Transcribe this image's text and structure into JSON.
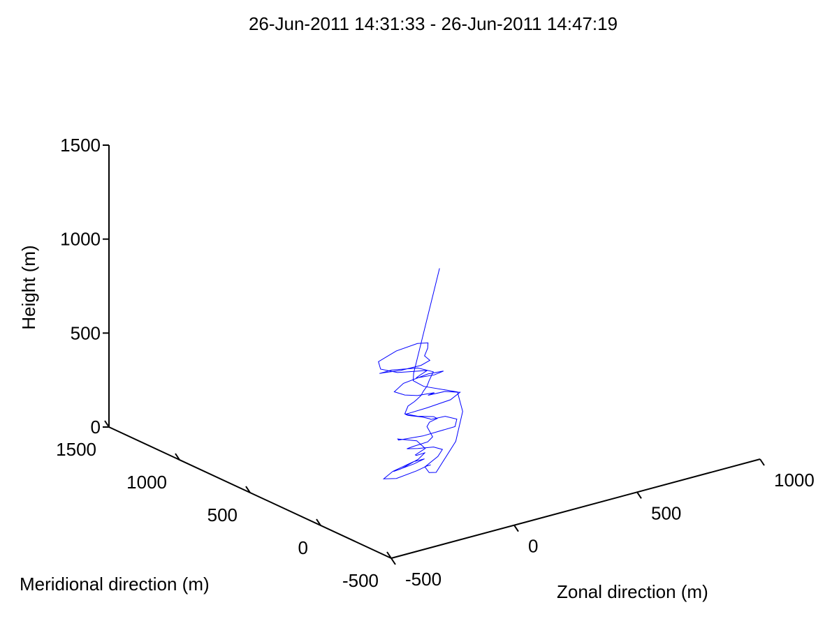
{
  "chart_data": {
    "type": "line3d",
    "title": "26-Jun-2011 14:31:33 - 26-Jun-2011 14:47:19",
    "xlabel": "Zonal direction (m)",
    "ylabel": "Meridional direction (m)",
    "zlabel": "Height (m)",
    "xlim": [
      -500,
      1000
    ],
    "ylim": [
      -500,
      1500
    ],
    "zlim": [
      0,
      1500
    ],
    "xticks": [
      -500,
      0,
      500,
      1000
    ],
    "yticks": [
      -500,
      0,
      500,
      1000,
      1500
    ],
    "zticks": [
      0,
      500,
      1000,
      1500
    ],
    "xtick_labels": [
      "-500",
      "0",
      "500",
      "1000"
    ],
    "ytick_labels": [
      "-500",
      "0",
      "500",
      "1000",
      "1500"
    ],
    "ztick_labels": [
      "0",
      "500",
      "1000",
      "1500"
    ],
    "grid": false,
    "line_color": "#0000ff",
    "series": [
      {
        "x": [
          120,
          100,
          40,
          -60,
          -100,
          -40,
          60,
          100,
          40,
          -60,
          -40,
          40,
          80,
          60,
          10,
          0,
          40,
          40,
          -20,
          -40,
          30,
          150,
          180,
          150,
          80,
          60,
          30,
          -20,
          -40,
          30,
          120,
          170,
          120,
          40,
          60,
          20,
          -20,
          -60,
          -80,
          -20,
          80,
          120,
          60,
          -20,
          -10,
          20,
          -20,
          -90,
          -130,
          -110,
          -20,
          60,
          80,
          50,
          20,
          30,
          0,
          -60,
          -100,
          -100,
          -40,
          50,
          90,
          50,
          30,
          10,
          0,
          -10,
          -10,
          -30,
          -60,
          -20,
          40,
          60,
          40,
          30,
          30,
          30,
          10,
          -30,
          -40,
          10,
          80,
          110,
          80,
          10,
          10,
          50,
          210,
          290,
          280,
          120,
          20,
          10,
          190
        ],
        "y": [
          300,
          290,
          260,
          230,
          250,
          290,
          320,
          310,
          280,
          250,
          230,
          250,
          270,
          240,
          210,
          200,
          200,
          260,
          290,
          250,
          200,
          180,
          220,
          250,
          230,
          200,
          200,
          220,
          200,
          170,
          160,
          180,
          200,
          180,
          170,
          160,
          150,
          170,
          210,
          250,
          250,
          210,
          170,
          160,
          150,
          150,
          150,
          170,
          220,
          270,
          300,
          290,
          250,
          200,
          170,
          150,
          160,
          200,
          250,
          280,
          300,
          270,
          230,
          190,
          170,
          160,
          160,
          170,
          190,
          200,
          170,
          150,
          140,
          150,
          170,
          170,
          150,
          130,
          130,
          160,
          190,
          200,
          210,
          200,
          180,
          150,
          120,
          140,
          280,
          370,
          390,
          350,
          250,
          230,
          360
        ],
        "z": [
          0,
          5,
          10,
          15,
          20,
          25,
          30,
          35,
          40,
          45,
          60,
          75,
          90,
          105,
          120,
          130,
          150,
          170,
          190,
          205,
          220,
          235,
          250,
          265,
          280,
          300,
          320,
          340,
          360,
          380,
          395,
          410,
          425,
          440,
          450,
          460,
          470,
          480,
          490,
          500,
          515,
          530,
          545,
          560,
          575,
          590,
          600,
          610,
          625,
          640,
          655,
          670,
          680,
          680,
          660,
          640,
          620,
          600,
          585,
          570,
          560,
          550,
          530,
          510,
          495,
          480,
          460,
          440,
          420,
          400,
          380,
          360,
          340,
          320,
          300,
          280,
          260,
          240,
          220,
          200,
          180,
          160,
          140,
          120,
          100,
          80,
          60,
          40,
          100,
          200,
          300,
          400,
          500,
          550,
          1000
        ]
      }
    ]
  }
}
